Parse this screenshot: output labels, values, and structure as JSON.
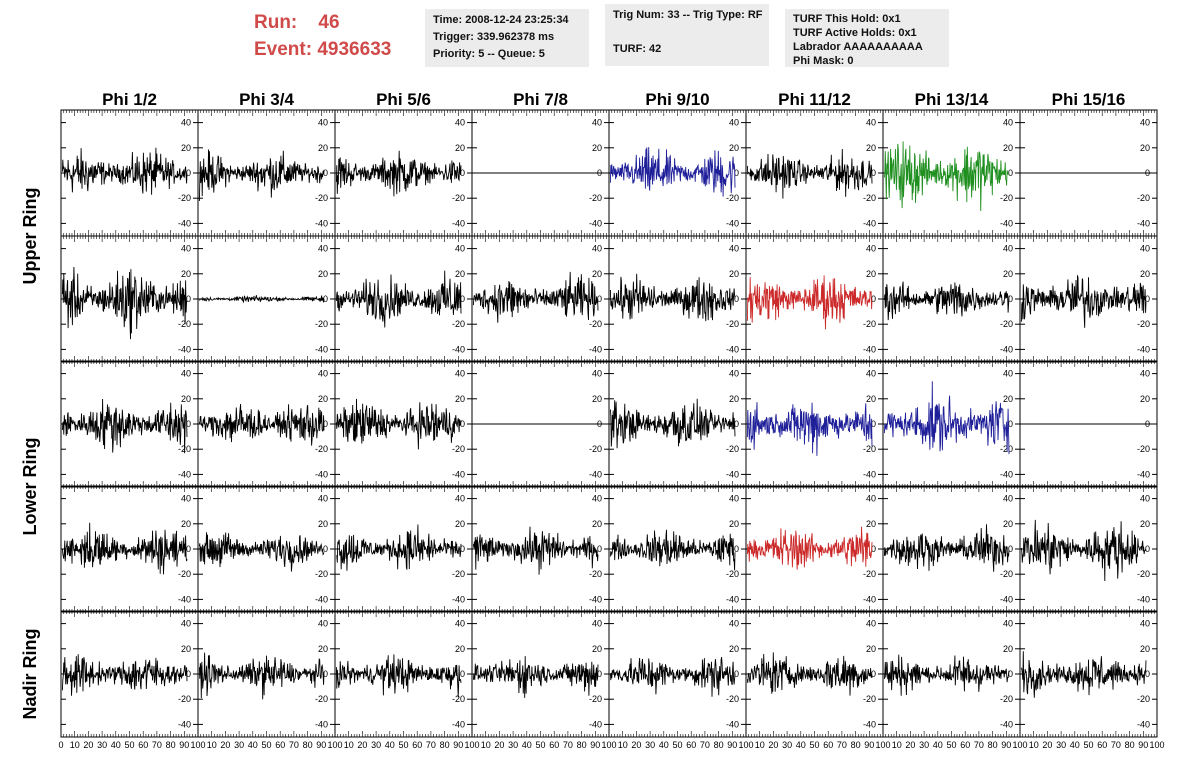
{
  "header": {
    "run_label": "Run:",
    "run_value": "46",
    "event_label": "Event:",
    "event_value": "4936633",
    "info_boxes": [
      [
        "Time: 2008-12-24 23:25:34",
        "Trigger: 339.962378 ms",
        "Priority: 5 -- Queue: 5"
      ],
      [
        "Trig Num: 33 -- Trig Type: RF",
        "",
        "TURF: 42"
      ],
      [
        "TURF This Hold: 0x1",
        "TURF Active Holds: 0x1",
        "Labrador AAAAAAAAAA",
        "Phi Mask: 0"
      ]
    ]
  },
  "colors": {
    "normal": "#000000",
    "blue": "#1f1f9a",
    "green": "#1f8f1f",
    "red": "#cc2a2a"
  },
  "chart_data": {
    "type": "line",
    "columns": [
      "Phi 1/2",
      "Phi 3/4",
      "Phi 5/6",
      "Phi 7/8",
      "Phi 9/10",
      "Phi 11/12",
      "Phi 13/14",
      "Phi 15/16"
    ],
    "rows": [
      "Upper Ring",
      "Upper Ring",
      "Lower Ring",
      "Lower Ring",
      "Nadir Ring"
    ],
    "row_labels": [
      {
        "name": "Upper Ring",
        "rows": [
          0,
          1
        ]
      },
      {
        "name": "Lower Ring",
        "rows": [
          2,
          3
        ]
      },
      {
        "name": "Nadir Ring",
        "rows": [
          4
        ]
      }
    ],
    "xlim": [
      0,
      100
    ],
    "ylim": [
      -50,
      50
    ],
    "y_ticks": [
      -40,
      -20,
      0,
      20,
      40
    ],
    "x_ticks": [
      0,
      10,
      20,
      30,
      40,
      50,
      60,
      70,
      80,
      90,
      100
    ],
    "panels": [
      [
        {
          "color": "normal",
          "amp": 14
        },
        {
          "color": "normal",
          "amp": 13
        },
        {
          "color": "normal",
          "amp": 13
        },
        {
          "color": "normal",
          "amp": 0
        },
        {
          "color": "blue",
          "amp": 15
        },
        {
          "color": "normal",
          "amp": 13
        },
        {
          "color": "green",
          "amp": 20
        },
        {
          "color": "normal",
          "amp": 0
        }
      ],
      [
        {
          "color": "normal",
          "amp": 20
        },
        {
          "color": "normal",
          "amp": 2
        },
        {
          "color": "normal",
          "amp": 15
        },
        {
          "color": "normal",
          "amp": 14
        },
        {
          "color": "normal",
          "amp": 14
        },
        {
          "color": "red",
          "amp": 16
        },
        {
          "color": "normal",
          "amp": 13
        },
        {
          "color": "normal",
          "amp": 16
        }
      ],
      [
        {
          "color": "normal",
          "amp": 16
        },
        {
          "color": "normal",
          "amp": 14
        },
        {
          "color": "normal",
          "amp": 15
        },
        {
          "color": "normal",
          "amp": 0
        },
        {
          "color": "normal",
          "amp": 15
        },
        {
          "color": "blue",
          "amp": 17
        },
        {
          "color": "blue",
          "amp": 19
        },
        {
          "color": "normal",
          "amp": 0
        }
      ],
      [
        {
          "color": "normal",
          "amp": 14
        },
        {
          "color": "normal",
          "amp": 11
        },
        {
          "color": "normal",
          "amp": 13
        },
        {
          "color": "normal",
          "amp": 13
        },
        {
          "color": "normal",
          "amp": 13
        },
        {
          "color": "red",
          "amp": 14
        },
        {
          "color": "normal",
          "amp": 13
        },
        {
          "color": "normal",
          "amp": 17
        }
      ],
      [
        {
          "color": "normal",
          "amp": 13
        },
        {
          "color": "normal",
          "amp": 12
        },
        {
          "color": "normal",
          "amp": 12
        },
        {
          "color": "normal",
          "amp": 12
        },
        {
          "color": "normal",
          "amp": 12
        },
        {
          "color": "normal",
          "amp": 13
        },
        {
          "color": "normal",
          "amp": 12
        },
        {
          "color": "normal",
          "amp": 13
        }
      ]
    ]
  }
}
